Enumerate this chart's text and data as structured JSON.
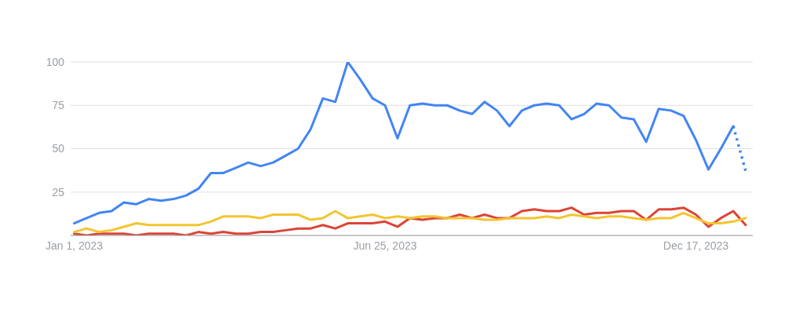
{
  "chart_data": {
    "type": "line",
    "x": [
      "2023-01-01",
      "2023-01-08",
      "2023-01-15",
      "2023-01-22",
      "2023-01-29",
      "2023-02-05",
      "2023-02-12",
      "2023-02-19",
      "2023-02-26",
      "2023-03-05",
      "2023-03-12",
      "2023-03-19",
      "2023-03-26",
      "2023-04-02",
      "2023-04-09",
      "2023-04-16",
      "2023-04-23",
      "2023-04-30",
      "2023-05-07",
      "2023-05-14",
      "2023-05-21",
      "2023-05-28",
      "2023-06-04",
      "2023-06-11",
      "2023-06-18",
      "2023-06-25",
      "2023-07-02",
      "2023-07-09",
      "2023-07-16",
      "2023-07-23",
      "2023-07-30",
      "2023-08-06",
      "2023-08-13",
      "2023-08-20",
      "2023-08-27",
      "2023-09-03",
      "2023-09-10",
      "2023-09-17",
      "2023-09-24",
      "2023-10-01",
      "2023-10-08",
      "2023-10-15",
      "2023-10-22",
      "2023-10-29",
      "2023-11-05",
      "2023-11-12",
      "2023-11-19",
      "2023-11-26",
      "2023-12-03",
      "2023-12-10",
      "2023-12-17",
      "2023-12-24",
      "2023-12-31",
      "2024-01-07",
      "2024-01-14"
    ],
    "series": [
      {
        "color": "#4285f4",
        "values": [
          7,
          10,
          13,
          14,
          19,
          18,
          21,
          20,
          21,
          23,
          27,
          36,
          36,
          39,
          42,
          40,
          42,
          46,
          50,
          61,
          79,
          77,
          100,
          90,
          79,
          75,
          56,
          75,
          76,
          75,
          75,
          72,
          70,
          77,
          72,
          63,
          72,
          75,
          76,
          75,
          67,
          70,
          76,
          75,
          68,
          67,
          54,
          73,
          72,
          69,
          55,
          38,
          50,
          63,
          null
        ]
      },
      {
        "color": "#4285f4",
        "line_style": "dotted",
        "x": [
          "2024-01-07",
          "2024-01-14"
        ],
        "values": [
          63,
          37
        ]
      },
      {
        "color": "#db4437",
        "values": [
          1,
          0,
          1,
          1,
          1,
          0,
          1,
          1,
          1,
          0,
          2,
          1,
          2,
          1,
          1,
          2,
          2,
          3,
          4,
          4,
          6,
          4,
          7,
          7,
          7,
          8,
          5,
          10,
          9,
          10,
          10,
          12,
          10,
          12,
          10,
          10,
          14,
          15,
          14,
          14,
          16,
          12,
          13,
          13,
          14,
          14,
          9,
          15,
          15,
          16,
          12,
          5,
          10,
          14,
          6
        ]
      },
      {
        "color": "#f4c430",
        "values": [
          2,
          4,
          2,
          3,
          5,
          7,
          6,
          6,
          6,
          6,
          6,
          8,
          11,
          11,
          11,
          10,
          12,
          12,
          12,
          9,
          10,
          14,
          10,
          11,
          12,
          10,
          11,
          10,
          11,
          11,
          10,
          10,
          10,
          9,
          9,
          10,
          10,
          10,
          11,
          10,
          12,
          11,
          10,
          11,
          11,
          10,
          9,
          10,
          10,
          13,
          10,
          7,
          7,
          8,
          10
        ]
      }
    ],
    "xlim": [
      "2022-12-30",
      "2024-01-18"
    ],
    "xticks": [
      {
        "value": "2023-01-01",
        "label": "Jan 1, 2023"
      },
      {
        "value": "2023-06-25",
        "label": "Jun 25, 2023"
      },
      {
        "value": "2023-12-17",
        "label": "Dec 17, 2023"
      }
    ],
    "ylim": [
      0,
      100
    ],
    "yticks": [
      {
        "value": 0,
        "label": null
      },
      25,
      50,
      75,
      100
    ],
    "grid": "y",
    "line_style": "solid",
    "marker": "none"
  }
}
